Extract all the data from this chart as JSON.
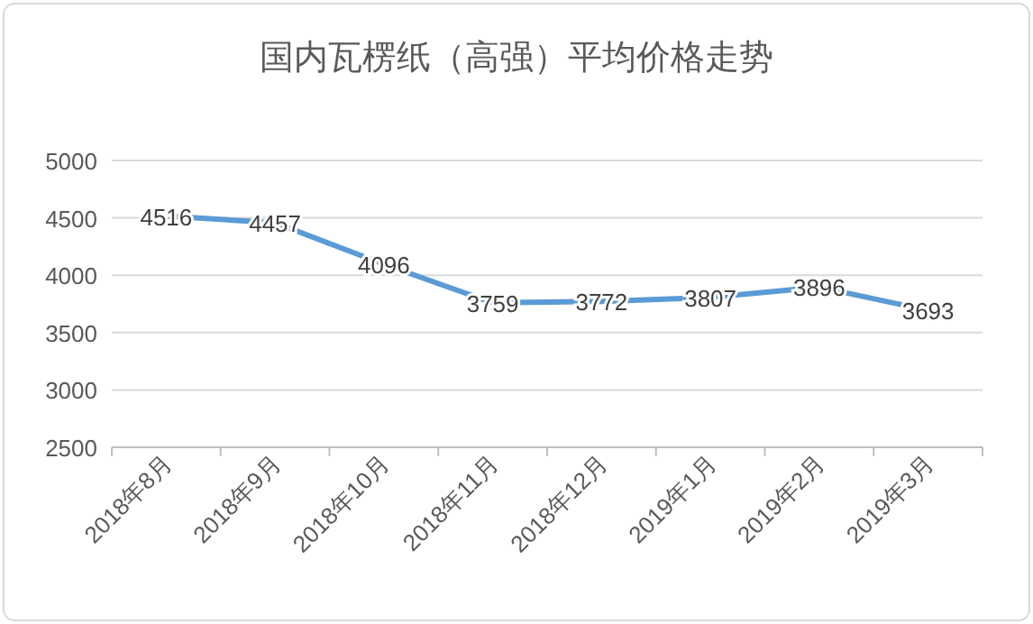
{
  "chart_data": {
    "type": "line",
    "title": "国内瓦楞纸（高强）平均价格走势",
    "categories": [
      "2018年8月",
      "2018年9月",
      "2018年10月",
      "2018年11月",
      "2018年12月",
      "2019年1月",
      "2019年2月",
      "2019年3月"
    ],
    "series": [
      {
        "color": "#5b9bd5",
        "values": [
          4516,
          4457,
          4096,
          3759,
          3772,
          3807,
          3896,
          3693
        ]
      }
    ],
    "ylim": [
      2500,
      5000
    ],
    "yticks": [
      2500,
      3000,
      3500,
      4000,
      4500,
      5000
    ],
    "grid": "y",
    "data_labels": true
  }
}
